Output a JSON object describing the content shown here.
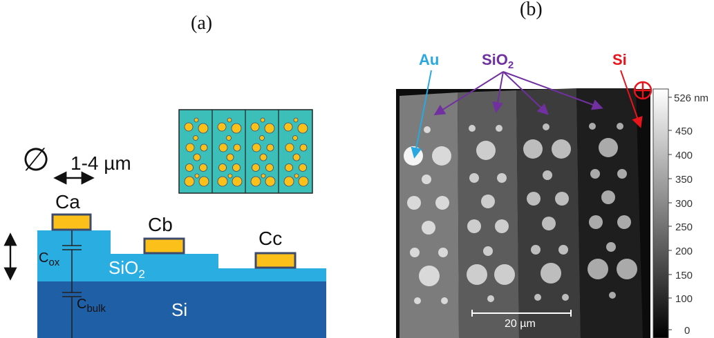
{
  "panel_a": {
    "label": "(a)",
    "diameter_symbol": "∅",
    "size_range": "1-4 µm",
    "pad_labels": [
      "Ca",
      "Cb",
      "Cc"
    ],
    "cap_ox": {
      "base": "C",
      "sub": "ox"
    },
    "cap_bulk": {
      "base": "C",
      "sub": "bulk"
    },
    "oxide_label": {
      "base": "SiO",
      "sub": "2"
    },
    "substrate_label": "Si"
  },
  "panel_b": {
    "label": "(b)",
    "arrow_labels": {
      "au": "Au",
      "sio2": {
        "base": "SiO",
        "sub": "2"
      },
      "si": "Si"
    },
    "scale_bar": "20 µm",
    "colorbar_ticks": [
      "526 nm",
      "450",
      "400",
      "350",
      "300",
      "250",
      "200",
      "150",
      "100",
      "0"
    ],
    "colors": {
      "au": "#29a8e0",
      "sio2": "#7030a0",
      "si": "#e8141b"
    }
  },
  "colors": {
    "oxide": "#2aaee2",
    "substrate": "#1f5fa6",
    "pad_fill": "#fbc11a",
    "pad_stroke": "#3e4a6b",
    "inset_bg": "#3bbfb8"
  }
}
